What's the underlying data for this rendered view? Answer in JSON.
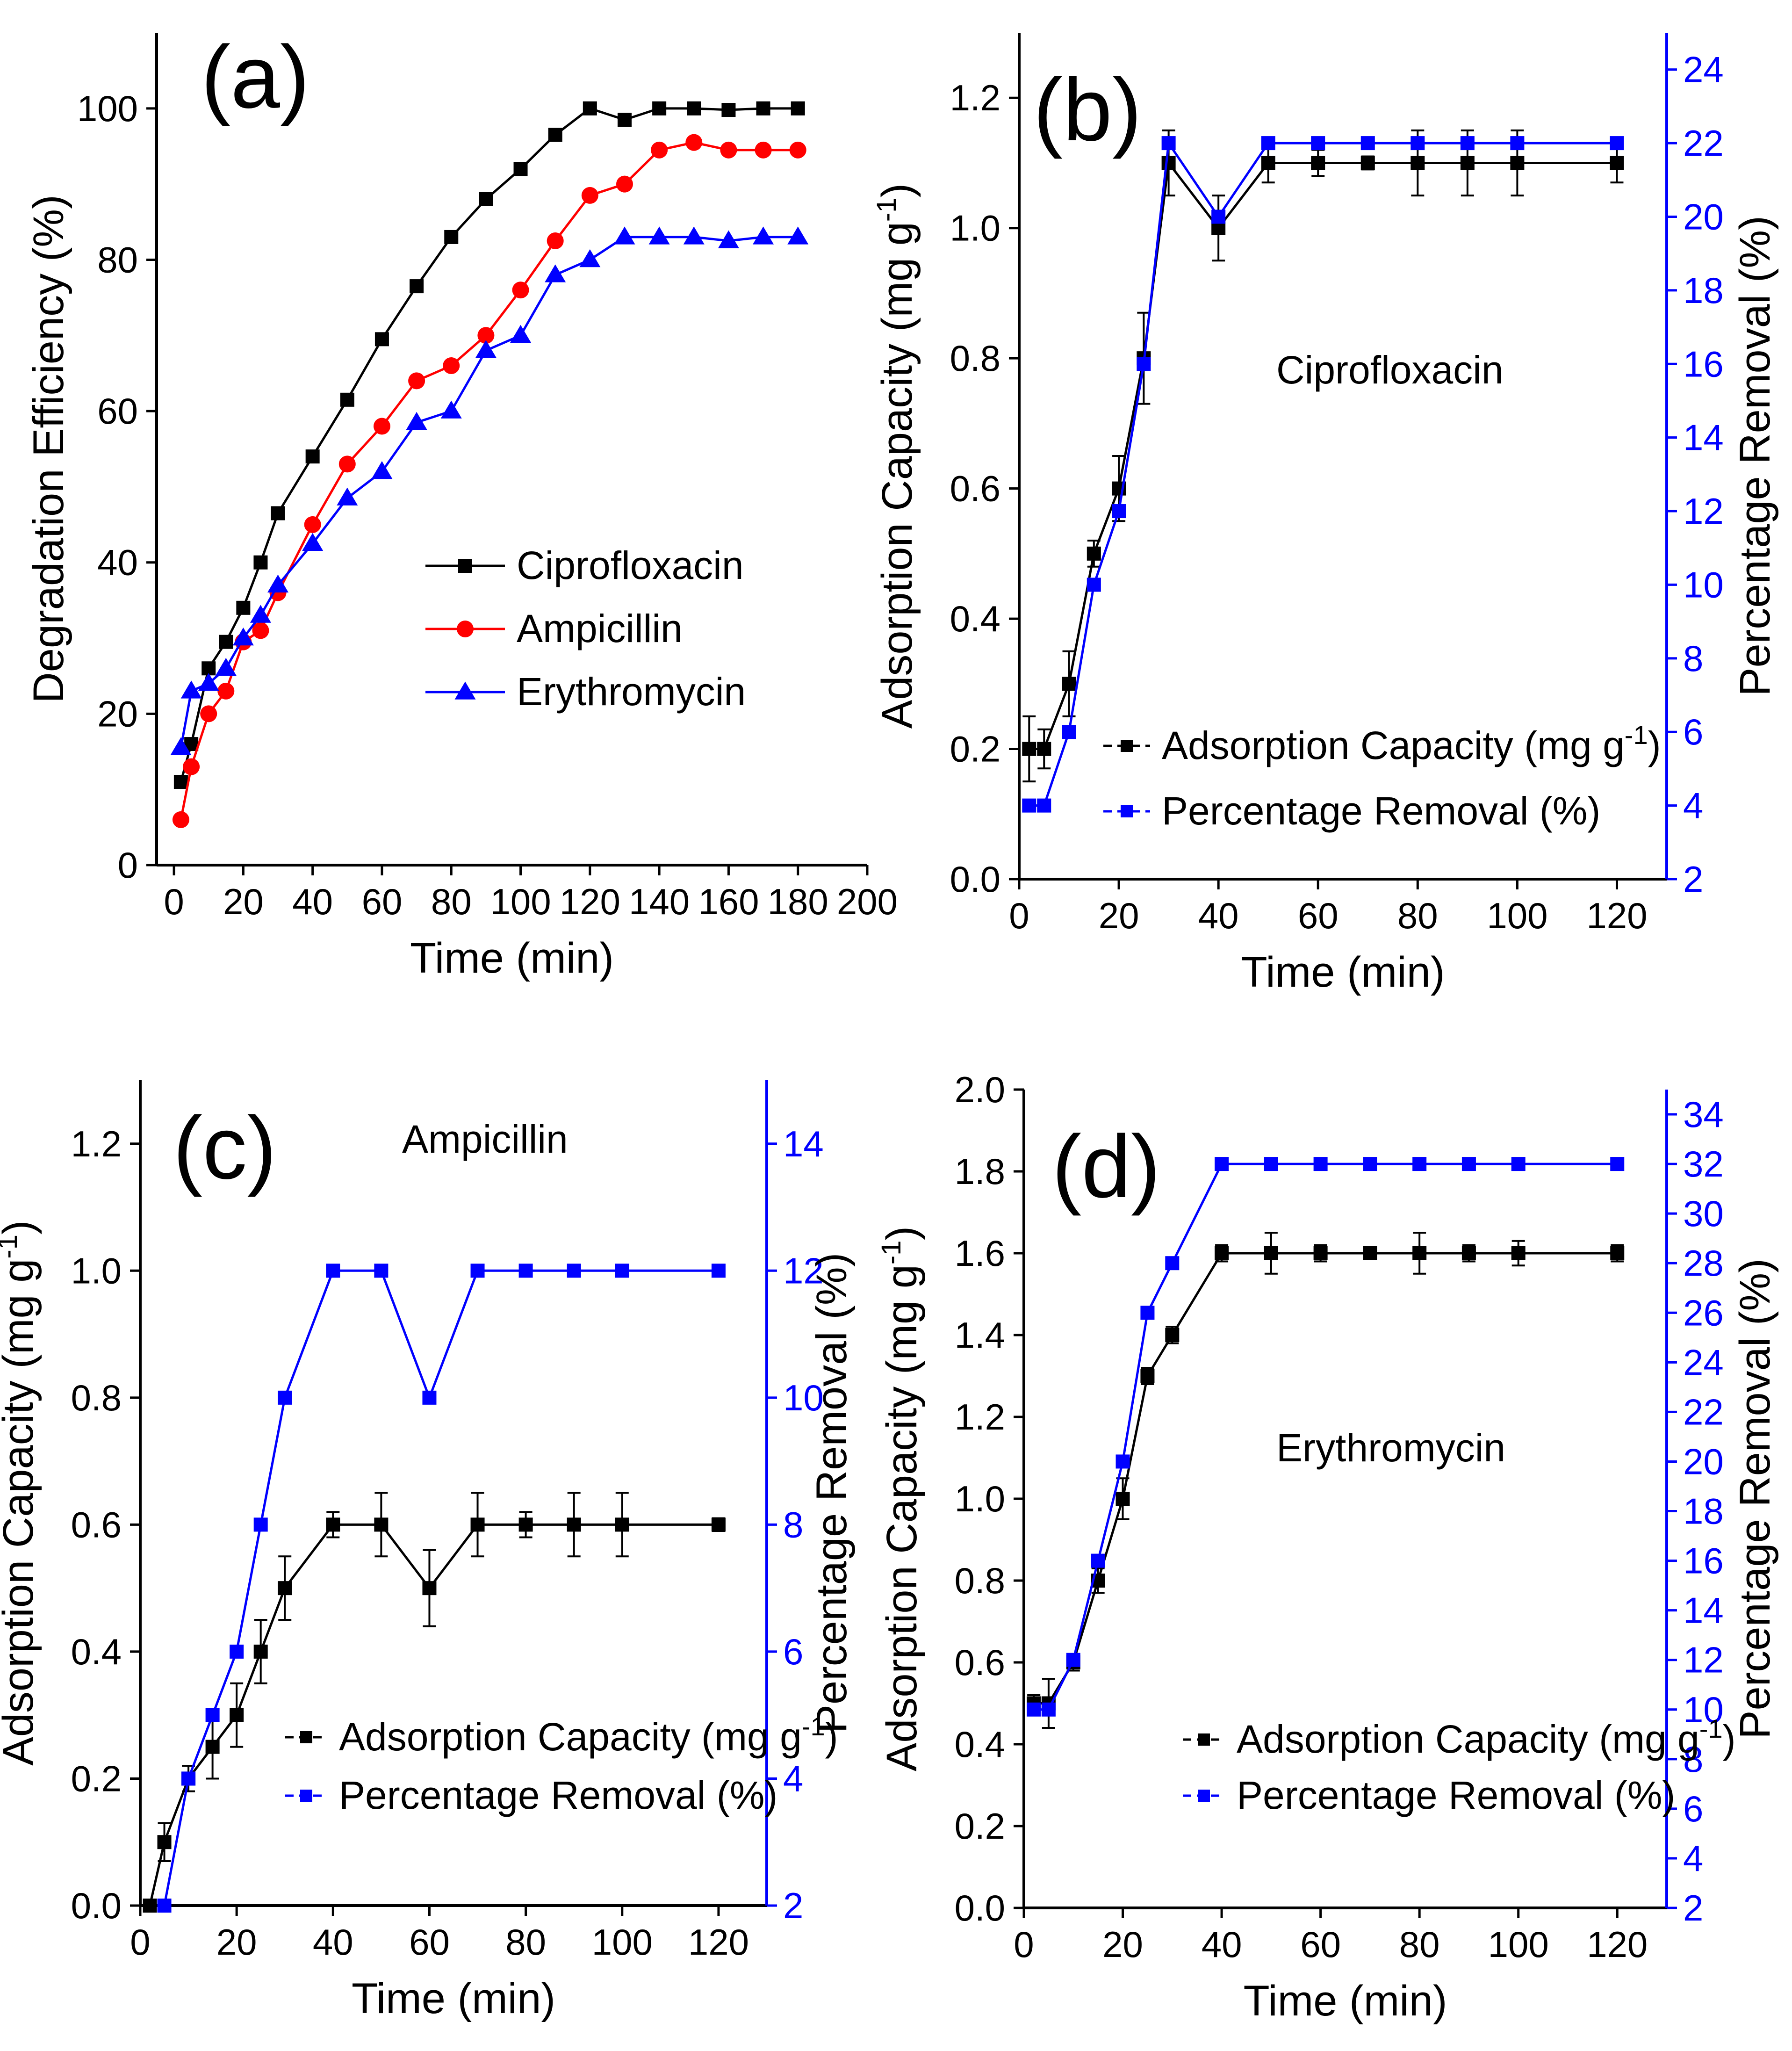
{
  "chart_data": [
    {
      "id": "a",
      "type": "line",
      "panel_label": "(a)",
      "xlabel": "Time (min)",
      "ylabel": "Degradation Efficiency (%)",
      "xlim": [
        -5,
        200
      ],
      "ylim": [
        0,
        110
      ],
      "xticks": [
        0,
        20,
        40,
        60,
        80,
        100,
        120,
        140,
        160,
        180,
        200
      ],
      "yticks": [
        0,
        20,
        40,
        60,
        80,
        100
      ],
      "legend_position": "center-right",
      "series": [
        {
          "name": "Ciprofloxacin",
          "color": "#000000",
          "marker": "square",
          "x": [
            2,
            5,
            10,
            15,
            20,
            25,
            30,
            40,
            50,
            60,
            70,
            80,
            90,
            100,
            110,
            120,
            130,
            140,
            150,
            160,
            170,
            180
          ],
          "y": [
            11,
            16,
            26,
            29.5,
            34,
            40,
            46.5,
            54,
            61.5,
            69.5,
            76.5,
            83,
            88,
            92,
            96.5,
            100,
            98.5,
            100,
            100,
            99.8,
            100,
            100
          ]
        },
        {
          "name": "Ampicillin",
          "color": "#ff0000",
          "marker": "circle",
          "x": [
            2,
            5,
            10,
            15,
            20,
            25,
            30,
            40,
            50,
            60,
            70,
            80,
            90,
            100,
            110,
            120,
            130,
            140,
            150,
            160,
            170,
            180
          ],
          "y": [
            6,
            13,
            20,
            23,
            29.5,
            31,
            36,
            45,
            53,
            58,
            64,
            66,
            70,
            76,
            82.5,
            88.5,
            90,
            94.5,
            95.5,
            94.5,
            94.5,
            94.5
          ]
        },
        {
          "name": "Erythromycin",
          "color": "#0000ff",
          "marker": "triangle",
          "x": [
            2,
            5,
            10,
            15,
            20,
            25,
            30,
            40,
            50,
            60,
            70,
            80,
            90,
            100,
            110,
            120,
            130,
            140,
            150,
            160,
            170,
            180
          ],
          "y": [
            15.5,
            23,
            24,
            26,
            30,
            33,
            37,
            42.5,
            48.5,
            52,
            58.5,
            60,
            68,
            70,
            78,
            80,
            83,
            83,
            83,
            82.5,
            83,
            83
          ]
        }
      ]
    },
    {
      "id": "b",
      "type": "line",
      "panel_label": "(b)",
      "annotation": "Ciprofloxacin",
      "xlabel": "Time (min)",
      "ylabel": "Adsorption Capacity (mg g",
      "ylabel_sup": "-1",
      "ylabel_tail": ")",
      "y2label": "Percentage Removal (%)",
      "xlim": [
        0,
        130
      ],
      "ylim": [
        0,
        1.3
      ],
      "y2lim": [
        2,
        25
      ],
      "xticks": [
        0,
        20,
        40,
        60,
        80,
        100,
        120
      ],
      "yticks": [
        0.0,
        0.2,
        0.4,
        0.6,
        0.8,
        1.0,
        1.2
      ],
      "y2ticks": [
        2,
        4,
        6,
        8,
        10,
        12,
        14,
        16,
        18,
        20,
        22,
        24
      ],
      "legend_position": "bottom-center",
      "series": [
        {
          "name": "Adsorption Capacity (mg g",
          "name_sup": "-1",
          "name_tail": ")",
          "axis": "left",
          "color": "#000000",
          "x": [
            2,
            5,
            10,
            15,
            20,
            25,
            30,
            40,
            50,
            60,
            70,
            80,
            90,
            100,
            120
          ],
          "y": [
            0.2,
            0.2,
            0.3,
            0.5,
            0.6,
            0.8,
            1.1,
            1.0,
            1.1,
            1.1,
            1.1,
            1.1,
            1.1,
            1.1,
            1.1
          ],
          "err": [
            0.05,
            0.03,
            0.05,
            0.02,
            0.05,
            0.07,
            0.05,
            0.05,
            0.03,
            0.02,
            0.01,
            0.05,
            0.05,
            0.05,
            0.03
          ]
        },
        {
          "name": "Percentage Removal (%)",
          "axis": "right",
          "color": "#0000ff",
          "x": [
            2,
            5,
            10,
            15,
            20,
            25,
            30,
            40,
            50,
            60,
            70,
            80,
            90,
            100,
            120
          ],
          "y": [
            4,
            4,
            6,
            10,
            12,
            16,
            22,
            20,
            22,
            22,
            22,
            22,
            22,
            22,
            22
          ]
        }
      ]
    },
    {
      "id": "c",
      "type": "line",
      "panel_label": "(c)",
      "annotation": "Ampicillin",
      "xlabel": "Time (min)",
      "ylabel": "Adsorption Capacity (mg g",
      "ylabel_sup": "-1",
      "ylabel_tail": ")",
      "y2label": "Percentage Removal (%)",
      "xlim": [
        0,
        130
      ],
      "ylim": [
        0,
        1.3
      ],
      "y2lim": [
        2,
        15
      ],
      "xticks": [
        0,
        20,
        40,
        60,
        80,
        100,
        120
      ],
      "yticks": [
        0.0,
        0.2,
        0.4,
        0.6,
        0.8,
        1.0,
        1.2
      ],
      "y2ticks": [
        2,
        4,
        6,
        8,
        10,
        12,
        14
      ],
      "legend_position": "bottom-right",
      "series": [
        {
          "name": "Adsorption Capacity (mg g",
          "name_sup": "-1",
          "name_tail": ")",
          "axis": "left",
          "color": "#000000",
          "x": [
            2,
            5,
            10,
            15,
            20,
            25,
            30,
            40,
            50,
            60,
            70,
            80,
            90,
            100,
            120
          ],
          "y": [
            0.0,
            0.1,
            0.2,
            0.25,
            0.3,
            0.4,
            0.5,
            0.6,
            0.6,
            0.5,
            0.6,
            0.6,
            0.6,
            0.6,
            0.6
          ],
          "err": [
            0.0,
            0.03,
            0.02,
            0.05,
            0.05,
            0.05,
            0.05,
            0.02,
            0.05,
            0.06,
            0.05,
            0.02,
            0.05,
            0.05,
            0.01
          ]
        },
        {
          "name": "Percentage Removal (%)",
          "axis": "right",
          "color": "#0000ff",
          "x": [
            5,
            10,
            15,
            20,
            25,
            30,
            40,
            50,
            60,
            70,
            80,
            90,
            100,
            120
          ],
          "y": [
            2,
            4,
            5,
            6,
            8,
            10,
            12,
            12,
            10,
            12,
            12,
            12,
            12,
            12
          ]
        }
      ]
    },
    {
      "id": "d",
      "type": "line",
      "panel_label": "(d)",
      "annotation": "Erythromycin",
      "xlabel": "Time (min)",
      "ylabel": "Adsorption Capacity (mg g",
      "ylabel_sup": "-1",
      "ylabel_tail": ")",
      "y2label": "Percentage Removal (%)",
      "xlim": [
        0,
        130
      ],
      "ylim": [
        0,
        2.0
      ],
      "y2lim": [
        2,
        35
      ],
      "xticks": [
        0,
        20,
        40,
        60,
        80,
        100,
        120
      ],
      "yticks": [
        0.0,
        0.2,
        0.4,
        0.6,
        0.8,
        1.0,
        1.2,
        1.4,
        1.6,
        1.8,
        2.0
      ],
      "y2ticks": [
        2,
        4,
        6,
        8,
        10,
        12,
        14,
        16,
        18,
        20,
        22,
        24,
        26,
        28,
        30,
        32,
        34
      ],
      "legend_position": "bottom-right",
      "series": [
        {
          "name": "Adsorption Capacity (mg g",
          "name_sup": "-1",
          "name_tail": ")",
          "axis": "left",
          "color": "#000000",
          "x": [
            2,
            5,
            10,
            15,
            20,
            25,
            30,
            40,
            50,
            60,
            70,
            80,
            90,
            100,
            120
          ],
          "y": [
            0.5,
            0.5,
            0.6,
            0.8,
            1.0,
            1.3,
            1.4,
            1.6,
            1.6,
            1.6,
            1.6,
            1.6,
            1.6,
            1.6,
            1.6
          ],
          "err": [
            0.02,
            0.06,
            0.02,
            0.03,
            0.05,
            0.02,
            0.02,
            0.02,
            0.05,
            0.02,
            0.01,
            0.05,
            0.02,
            0.03,
            0.02
          ]
        },
        {
          "name": "Percentage Removal (%)",
          "axis": "right",
          "color": "#0000ff",
          "x": [
            2,
            5,
            10,
            15,
            20,
            25,
            30,
            40,
            50,
            60,
            70,
            80,
            90,
            100,
            120
          ],
          "y": [
            10,
            10,
            12,
            16,
            20,
            26,
            28,
            32,
            32,
            32,
            32,
            32,
            32,
            32,
            32
          ]
        }
      ]
    }
  ]
}
